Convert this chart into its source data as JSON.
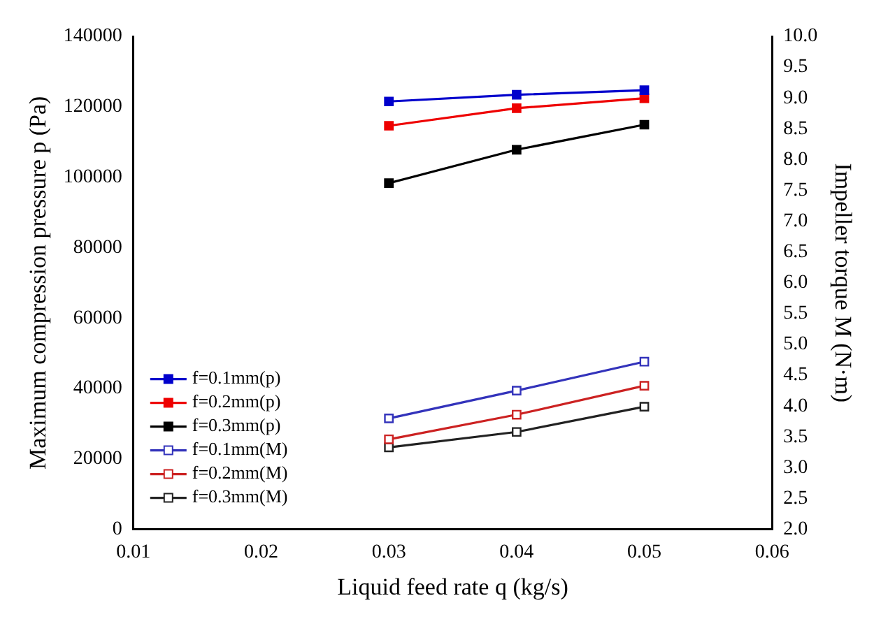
{
  "chart_data": {
    "type": "line",
    "xlabel": "Liquid feed rate q (kg/s)",
    "ylabel": "Maximum compression pressure p (Pa)",
    "y2label": "Impeller torque M (N·m)",
    "x": [
      0.03,
      0.04,
      0.05
    ],
    "series": [
      {
        "name": "f=0.1mm(p)",
        "color": "#0000cc",
        "values": [
          121500,
          123400,
          124700
        ]
      },
      {
        "name": "f=0.2mm(p)",
        "color": "#ee0000",
        "values": [
          114600,
          119600,
          122400
        ]
      },
      {
        "name": "f=0.3mm(p)",
        "color": "#000000",
        "values": [
          98300,
          107800,
          114900
        ]
      },
      {
        "name": "f=0.1mm(M)",
        "color": "#3333bb",
        "values": [
          3.8,
          4.25,
          4.72
        ],
        "axis": "y2"
      },
      {
        "name": "f=0.2mm(M)",
        "color": "#cc2222",
        "values": [
          3.46,
          3.86,
          4.33
        ],
        "axis": "y2"
      },
      {
        "name": "f=0.3mm(M)",
        "color": "#222222",
        "values": [
          3.33,
          3.58,
          3.99
        ],
        "axis": "y2"
      }
    ],
    "xlim": [
      0.01,
      0.06
    ],
    "xticks": [
      0.01,
      0.02,
      0.03,
      0.04,
      0.05,
      0.06
    ],
    "ylim": [
      0,
      140000
    ],
    "yticks": [
      0,
      20000,
      40000,
      60000,
      80000,
      100000,
      120000,
      140000
    ],
    "y2lim": [
      2,
      10
    ],
    "y2ticks": [
      {
        "value": 2,
        "label": "2.0"
      },
      {
        "value": 2.5,
        "label": "2.5"
      },
      {
        "value": 3,
        "label": "3.0"
      },
      {
        "value": 3.5,
        "label": "3.5"
      },
      {
        "value": 4,
        "label": "4.0"
      },
      {
        "value": 4.5,
        "label": "4.5"
      },
      {
        "value": 5,
        "label": "5.0"
      },
      {
        "value": 5.5,
        "label": "5.5"
      },
      {
        "value": 6,
        "label": "6.0"
      },
      {
        "value": 6.5,
        "label": "6.5"
      },
      {
        "value": 7,
        "label": "7.0"
      },
      {
        "value": 7.5,
        "label": "7.5"
      },
      {
        "value": 8,
        "label": "8.0"
      },
      {
        "value": 8.5,
        "label": "8.5"
      },
      {
        "value": 9,
        "label": "9.0"
      },
      {
        "value": 9.5,
        "label": "9.5"
      },
      {
        "value": 10,
        "label": "10.0"
      }
    ],
    "grid": false,
    "legend": "bottom left",
    "marker": "square",
    "line_style": "solid"
  }
}
